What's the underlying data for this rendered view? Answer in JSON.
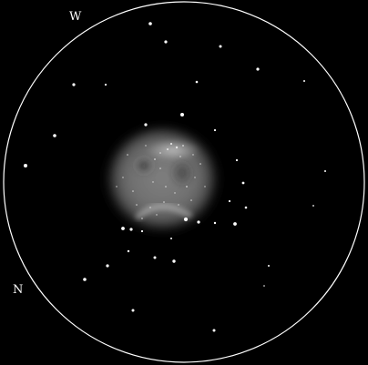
{
  "labels": {
    "west": "W",
    "north": "N"
  },
  "colors": {
    "background": "#000000",
    "field_circle": "#ffffff",
    "star": "#ffffff",
    "nebula": "#bdbdbd"
  },
  "description_items": {
    "field_of_view": "eyepiece-field-circle",
    "object": "planetary-nebula"
  }
}
